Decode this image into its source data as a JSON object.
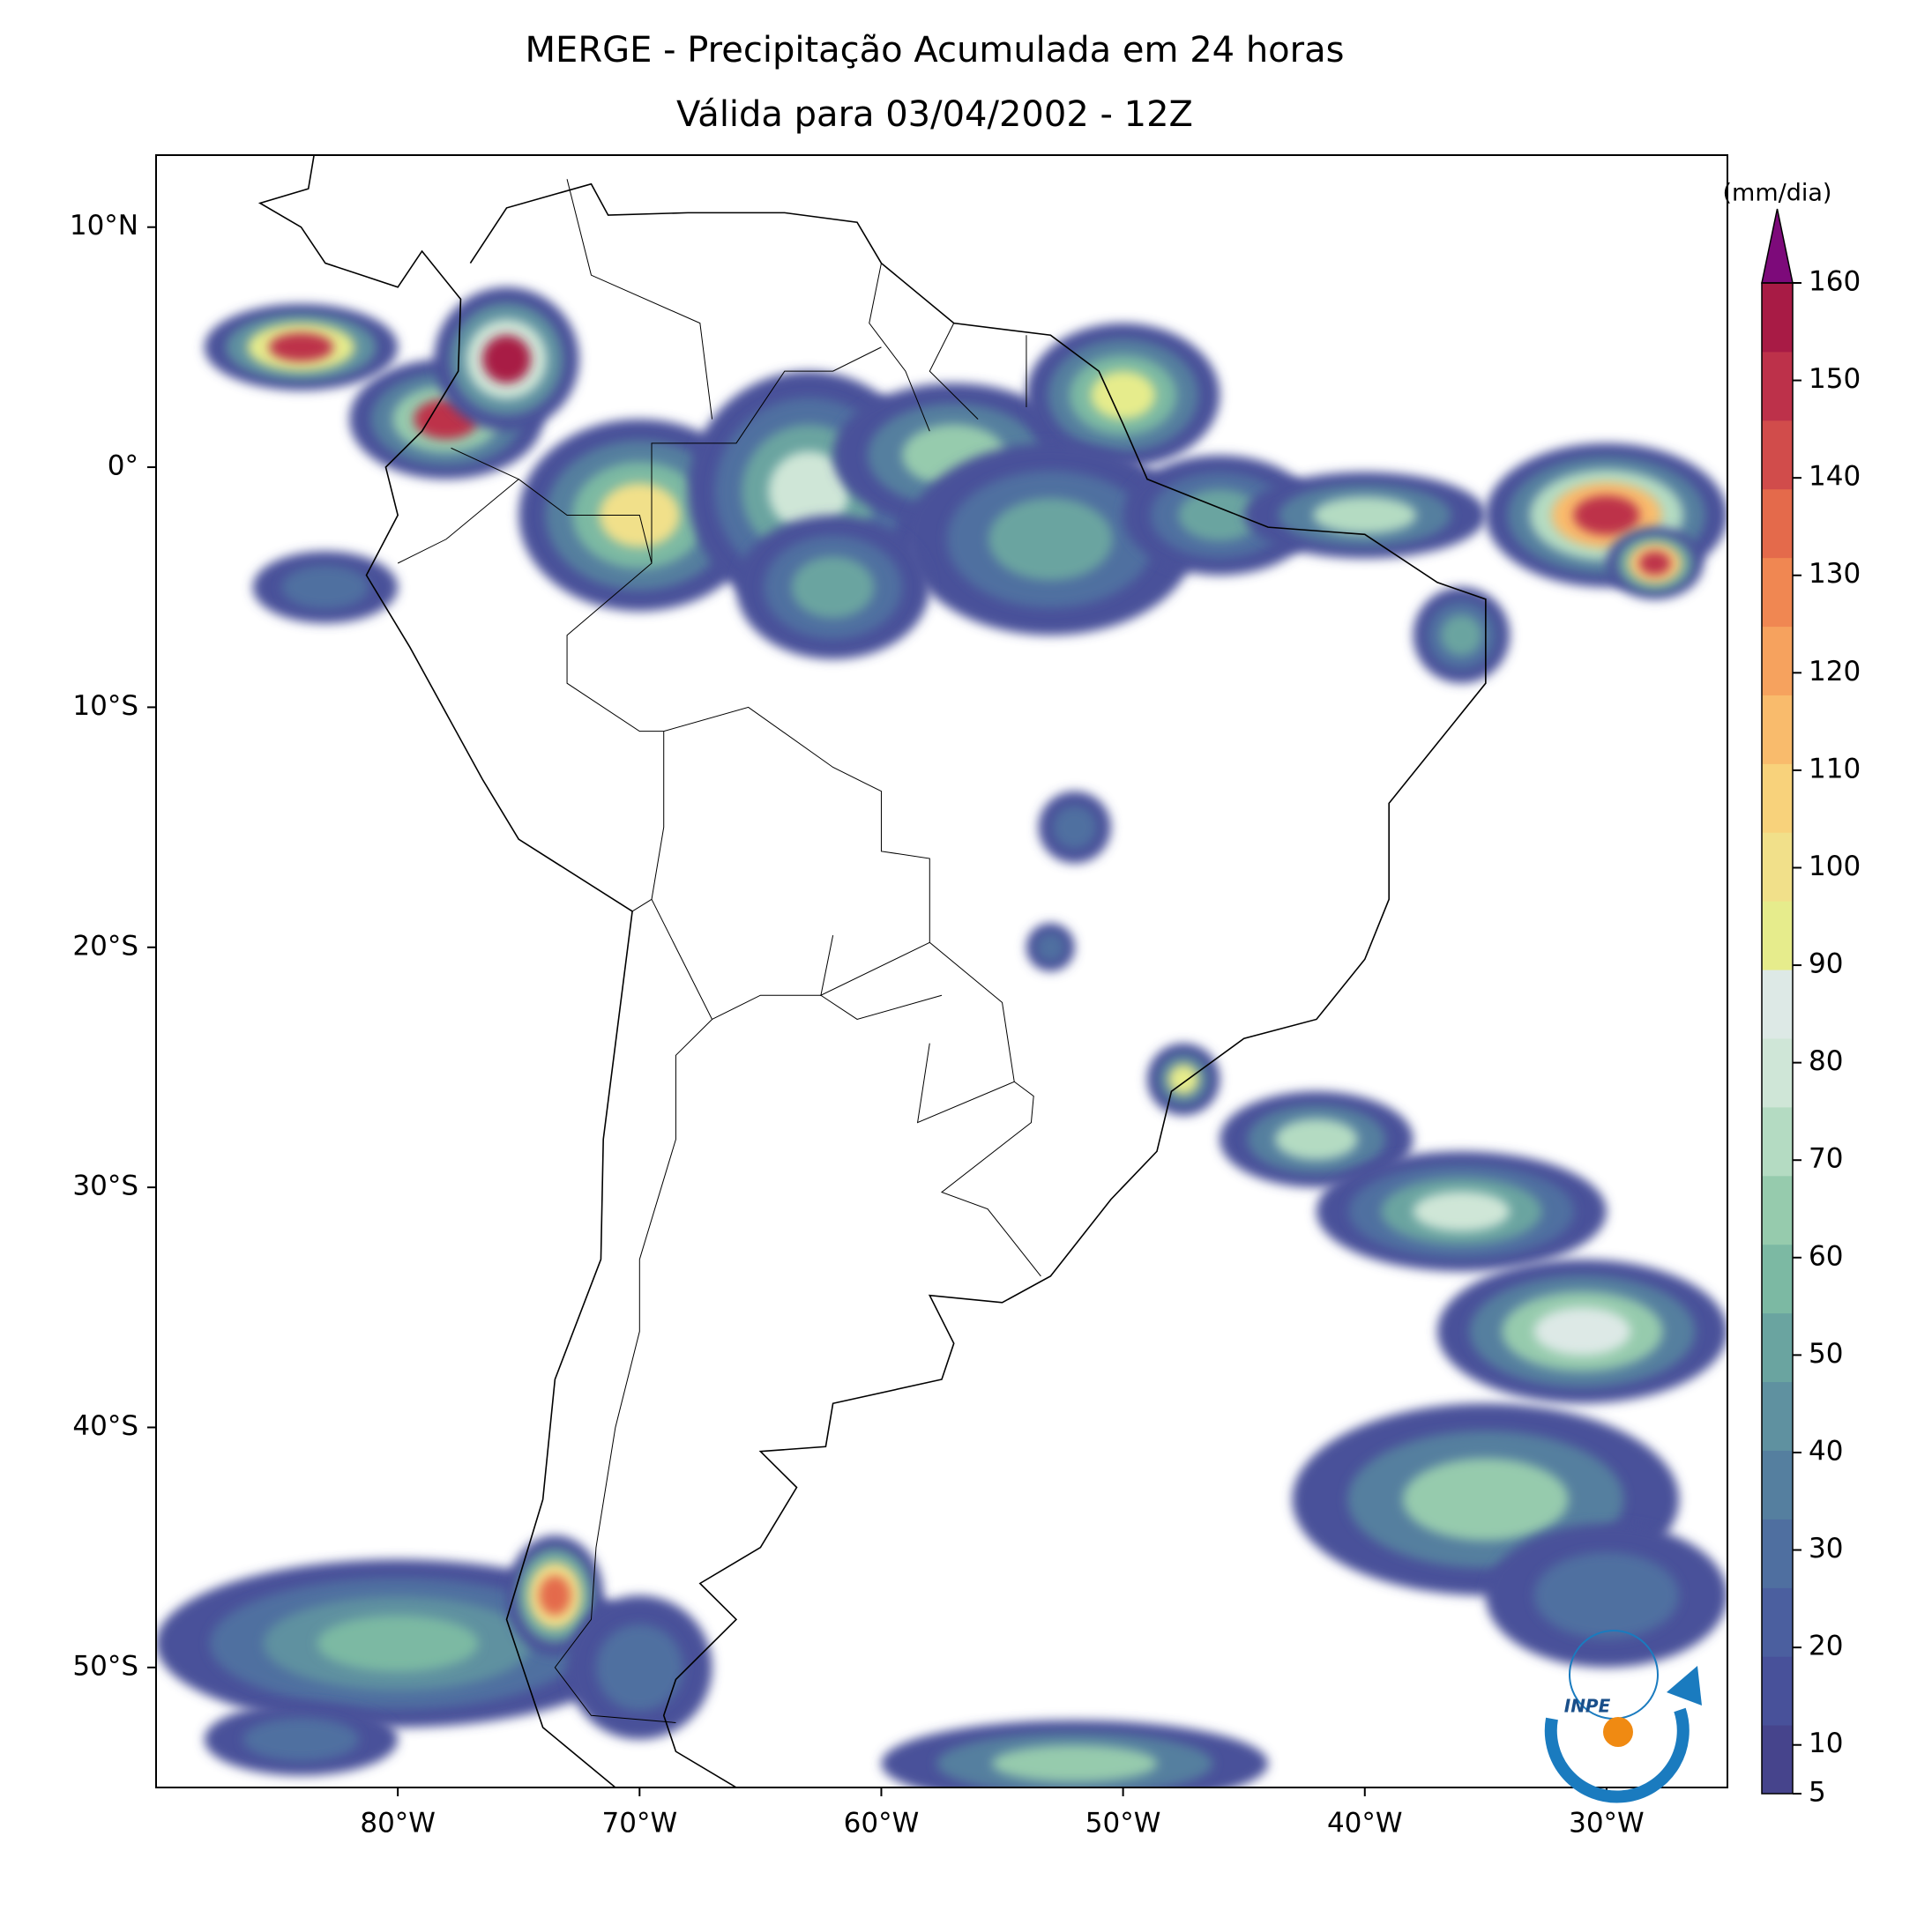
{
  "chart_data": {
    "type": "map",
    "title": "MERGE - Precipitação Acumulada em 24 horas",
    "subtitle": "Válida para 03/04/2002 - 12Z",
    "xlim": [
      -90,
      -25
    ],
    "ylim": [
      -55,
      13
    ],
    "xticks": [
      {
        "value": -80,
        "label": "80°W"
      },
      {
        "value": -70,
        "label": "70°W"
      },
      {
        "value": -60,
        "label": "60°W"
      },
      {
        "value": -50,
        "label": "50°W"
      },
      {
        "value": -40,
        "label": "40°W"
      },
      {
        "value": -30,
        "label": "30°W"
      }
    ],
    "yticks": [
      {
        "value": 10,
        "label": "10°N"
      },
      {
        "value": 0,
        "label": "0°"
      },
      {
        "value": -10,
        "label": "10°S"
      },
      {
        "value": -20,
        "label": "20°S"
      },
      {
        "value": -30,
        "label": "30°S"
      },
      {
        "value": -40,
        "label": "40°S"
      },
      {
        "value": -50,
        "label": "50°S"
      }
    ],
    "colorbar": {
      "label": "(mm/dia)",
      "lim": [
        5,
        160
      ],
      "ticks": [
        5,
        10,
        20,
        30,
        40,
        50,
        60,
        70,
        80,
        90,
        100,
        110,
        120,
        130,
        140,
        150,
        160
      ],
      "colors": [
        "#46448c",
        "#48519a",
        "#4b5f9f",
        "#4f6fa0",
        "#557f9f",
        "#5f91a0",
        "#6aa4a0",
        "#7cb9a3",
        "#96cbad",
        "#b4dbc2",
        "#cfe6d7",
        "#dde9e6",
        "#e6ec8c",
        "#f1e08a",
        "#f8d27b",
        "#f9bb6c",
        "#f6a25e",
        "#f08752",
        "#e46a4b",
        "#d14c4b",
        "#bd314a",
        "#a81b45"
      ],
      "extend_color": "#7d0a7a"
    },
    "logo": "INPE"
  }
}
